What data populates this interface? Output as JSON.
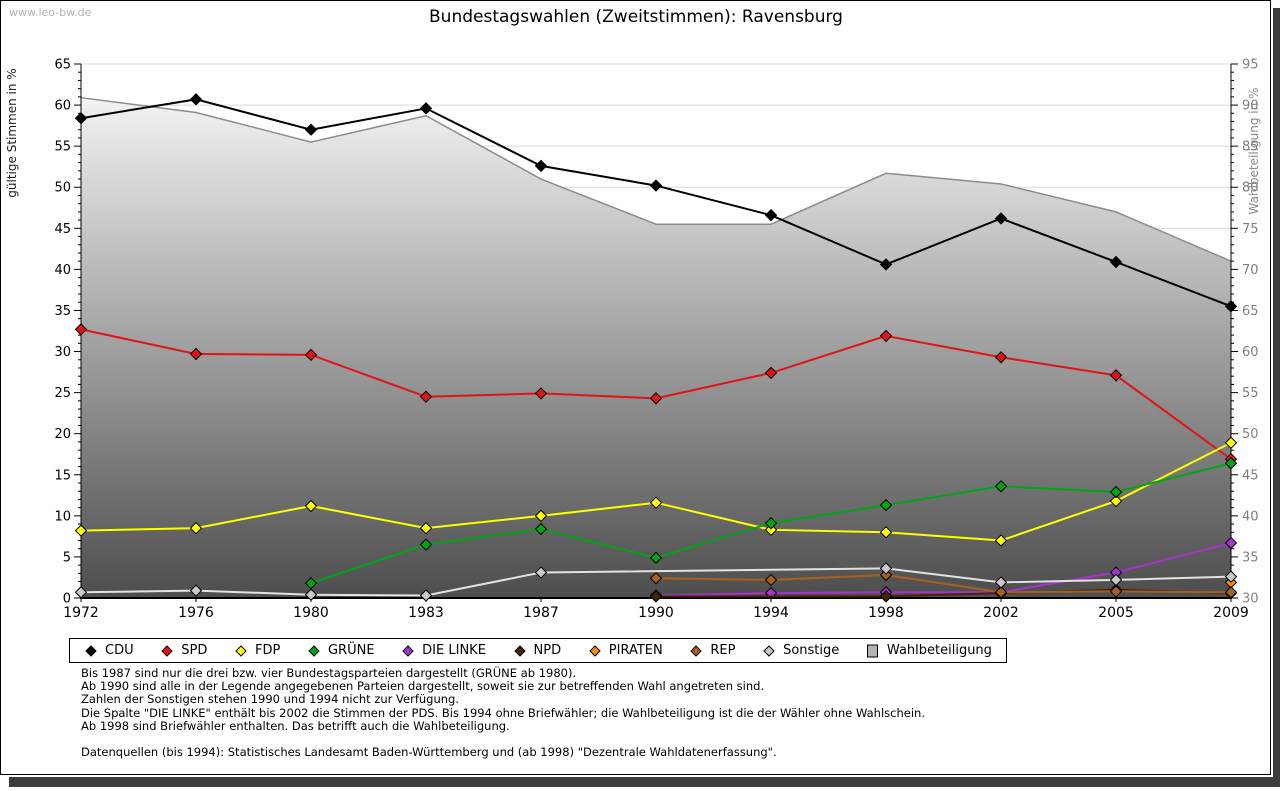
{
  "watermark": "www.leo-bw.de",
  "title": "Bundestagswahlen (Zweitstimmen): Ravensburg",
  "chart_data": {
    "type": "line",
    "title": "Bundestagswahlen (Zweitstimmen): Ravensburg",
    "categories": [
      "1972",
      "1976",
      "1980",
      "1983",
      "1987",
      "1990",
      "1994",
      "1998",
      "2002",
      "2005",
      "2009"
    ],
    "grid": true,
    "legend_position": "bottom",
    "y_left": {
      "label": "gültige Stimmen in %",
      "min": 0,
      "max": 65,
      "step": 5
    },
    "y_right": {
      "label": "Wahlbeteiligung in %",
      "min": 30,
      "max": 95,
      "step": 5
    },
    "colors": {
      "gridline": "#d8d8d8",
      "axis": "#000000",
      "right_axis_text": "#7f7f7f",
      "area_fill_top": "#fefefe",
      "area_fill_bottom": "#4d4d4d"
    },
    "series": [
      {
        "name": "CDU",
        "color": "#000000",
        "axis": "left",
        "marker": "diamond",
        "values": [
          58.4,
          60.7,
          57.0,
          59.6,
          52.6,
          50.2,
          46.6,
          40.6,
          46.2,
          40.9,
          35.5
        ]
      },
      {
        "name": "SPD",
        "color": "#e01414",
        "axis": "left",
        "marker": "diamond",
        "values": [
          32.7,
          29.7,
          29.6,
          24.5,
          24.9,
          24.3,
          27.4,
          31.9,
          29.3,
          27.1,
          16.9
        ]
      },
      {
        "name": "FDP",
        "color": "#ffff00",
        "axis": "left",
        "marker": "diamond",
        "values": [
          8.2,
          8.5,
          11.2,
          8.5,
          10.0,
          11.6,
          8.3,
          8.0,
          7.0,
          11.8,
          18.9
        ]
      },
      {
        "name": "GRÜNE",
        "color": "#00a513",
        "axis": "left",
        "marker": "diamond",
        "values": [
          null,
          null,
          1.8,
          6.5,
          8.4,
          4.9,
          9.1,
          11.3,
          13.6,
          12.9,
          16.4
        ]
      },
      {
        "name": "DIE LINKE",
        "color": "#a435cb",
        "axis": "left",
        "marker": "diamond",
        "values": [
          null,
          null,
          null,
          null,
          null,
          0.3,
          0.6,
          0.7,
          0.7,
          3.1,
          6.7
        ]
      },
      {
        "name": "NPD",
        "color": "#452507",
        "axis": "left",
        "marker": "diamond",
        "values": [
          null,
          null,
          null,
          null,
          null,
          0.2,
          null,
          0.2,
          0.6,
          1.0,
          0.6
        ]
      },
      {
        "name": "PIRATEN",
        "color": "#ff8c00",
        "axis": "left",
        "marker": "diamond",
        "values": [
          null,
          null,
          null,
          null,
          null,
          null,
          null,
          null,
          null,
          null,
          1.9
        ]
      },
      {
        "name": "REP",
        "color": "#a8601e",
        "axis": "left",
        "marker": "diamond",
        "values": [
          null,
          null,
          null,
          null,
          null,
          2.4,
          2.2,
          2.8,
          0.7,
          0.8,
          0.7
        ]
      },
      {
        "name": "Sonstige",
        "color": "#e2e2e2",
        "marker_color": "#c9c9c9",
        "axis": "left",
        "marker": "diamond",
        "values": [
          0.7,
          0.9,
          0.4,
          0.3,
          3.1,
          null,
          null,
          3.6,
          1.9,
          2.2,
          2.6
        ]
      },
      {
        "name": "Wahlbeteiligung",
        "color": "#8c8c8c",
        "axis": "right",
        "type": "area",
        "marker": "square",
        "swatch_fill": "#b4b4b4",
        "values": [
          90.9,
          89.1,
          85.5,
          88.7,
          81.0,
          75.5,
          75.5,
          81.7,
          80.4,
          77.0,
          71.0
        ]
      }
    ]
  },
  "footer": {
    "lines": [
      "Bis 1987 sind nur die drei bzw. vier Bundestagsparteien dargestellt (GRÜNE ab 1980).",
      "Ab 1990 sind alle in der Legende angegebenen Parteien dargestellt, soweit sie zur betreffenden Wahl angetreten sind.",
      "Zahlen der Sonstigen stehen 1990 und 1994 nicht zur Verfügung.",
      "Die Spalte \"DIE LINKE\" enthält bis 2002 die Stimmen der PDS. Bis 1994 ohne Briefwähler; die Wahlbeteiligung ist die der Wähler ohne Wahlschein.",
      "Ab 1998 sind Briefwähler enthalten. Das betrifft auch die Wahlbeteiligung.",
      "",
      "Datenquellen (bis 1994): Statistisches Landesamt Baden-Württemberg und (ab 1998) \"Dezentrale Wahldatenerfassung\"."
    ]
  }
}
